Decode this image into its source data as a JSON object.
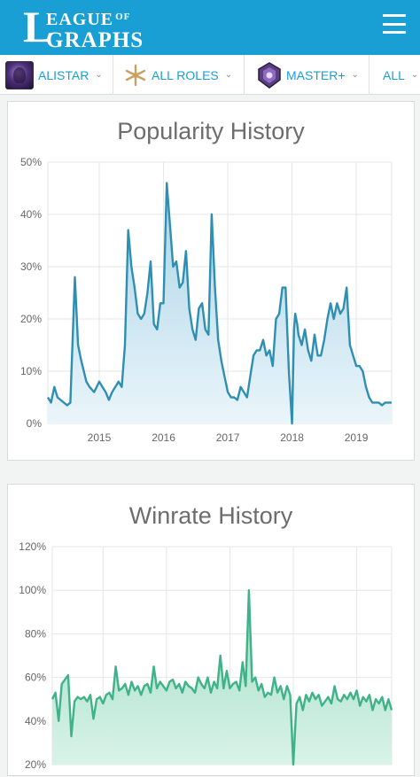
{
  "header": {
    "logo_big_letter": "L",
    "logo_line1": "EAGUE",
    "logo_of": "OF",
    "logo_line2": "GRAPHS",
    "menu_icon": "hamburger-menu-icon",
    "background_color": "#1a9fd4"
  },
  "filters": {
    "champion": {
      "label": "ALISTAR",
      "icon": "champion-portrait-icon"
    },
    "role": {
      "label": "ALL ROLES",
      "icon": "all-roles-icon"
    },
    "rank": {
      "label": "MASTER+",
      "icon": "master-rank-icon"
    },
    "region": {
      "label": "ALL"
    }
  },
  "popularity": {
    "title": "Popularity History",
    "color": "#2e8fb3",
    "fill_top": "#a9d3e6",
    "fill_bottom": "#eaf5fa",
    "chart_data": {
      "type": "area",
      "title": "Popularity History",
      "xlabel": "",
      "ylabel": "",
      "ylim": [
        0,
        50
      ],
      "xlim": [
        2014.2,
        2019.55
      ],
      "y_ticks": [
        "0%",
        "10%",
        "20%",
        "30%",
        "40%",
        "50%"
      ],
      "x_ticks": [
        "2015",
        "2016",
        "2017",
        "2018",
        "2019"
      ],
      "grid": true,
      "x": [
        2014.2,
        2014.25,
        2014.3,
        2014.35,
        2014.45,
        2014.5,
        2014.55,
        2014.62,
        2014.67,
        2014.72,
        2014.8,
        2014.85,
        2014.92,
        2015.0,
        2015.05,
        2015.1,
        2015.15,
        2015.2,
        2015.25,
        2015.3,
        2015.35,
        2015.4,
        2015.45,
        2015.5,
        2015.55,
        2015.6,
        2015.65,
        2015.7,
        2015.75,
        2015.8,
        2015.85,
        2015.9,
        2015.95,
        2016.0,
        2016.05,
        2016.1,
        2016.15,
        2016.2,
        2016.25,
        2016.3,
        2016.35,
        2016.4,
        2016.45,
        2016.5,
        2016.55,
        2016.6,
        2016.65,
        2016.7,
        2016.75,
        2016.8,
        2016.85,
        2016.9,
        2016.95,
        2017.0,
        2017.05,
        2017.1,
        2017.15,
        2017.2,
        2017.25,
        2017.3,
        2017.35,
        2017.4,
        2017.45,
        2017.5,
        2017.55,
        2017.6,
        2017.65,
        2017.7,
        2017.75,
        2017.8,
        2017.85,
        2017.9,
        2017.95,
        2018.0,
        2018.03,
        2018.05,
        2018.08,
        2018.1,
        2018.15,
        2018.2,
        2018.25,
        2018.3,
        2018.35,
        2018.4,
        2018.45,
        2018.5,
        2018.55,
        2018.6,
        2018.65,
        2018.7,
        2018.75,
        2018.8,
        2018.85,
        2018.9,
        2018.95,
        2019.0,
        2019.05,
        2019.1,
        2019.15,
        2019.2,
        2019.25,
        2019.3,
        2019.35,
        2019.4,
        2019.45,
        2019.5,
        2019.55
      ],
      "values": [
        5,
        4,
        7,
        5,
        4,
        3.5,
        4,
        28,
        15,
        12,
        8,
        7,
        6,
        8,
        7,
        6,
        4.5,
        6,
        7,
        8,
        7,
        15,
        37,
        30,
        26,
        21,
        20,
        21,
        25,
        31,
        19,
        18,
        23,
        23,
        46,
        38,
        30,
        31,
        26,
        27,
        33,
        22,
        18,
        16,
        22,
        23,
        18,
        17,
        40,
        26,
        16,
        12,
        9,
        6,
        5,
        5,
        4.5,
        7,
        6,
        5,
        9,
        13,
        14,
        14,
        16,
        13,
        14,
        11,
        20,
        21,
        26,
        26,
        10,
        0,
        18,
        21,
        19,
        17,
        15,
        18,
        14,
        12,
        17,
        13,
        13,
        16,
        20,
        23,
        20,
        23,
        21,
        22,
        26,
        15,
        13,
        11,
        11,
        10,
        7,
        5,
        4,
        4,
        4,
        3.5,
        4,
        4,
        4
      ]
    }
  },
  "winrate": {
    "title": "Winrate History",
    "color": "#3fb28a",
    "fill_top": "#9fdcc3",
    "fill_bottom": "#d9f3e8",
    "chart_data": {
      "type": "area",
      "title": "Winrate History",
      "xlabel": "",
      "ylabel": "",
      "ylim": [
        20,
        120
      ],
      "xlim": [
        2014.2,
        2019.55
      ],
      "y_ticks": [
        "20%",
        "40%",
        "60%",
        "80%",
        "100%",
        "120%"
      ],
      "grid": true,
      "x": [
        2014.2,
        2014.25,
        2014.3,
        2014.35,
        2014.4,
        2014.45,
        2014.5,
        2014.55,
        2014.6,
        2014.65,
        2014.7,
        2014.75,
        2014.8,
        2014.85,
        2014.9,
        2014.95,
        2015.0,
        2015.05,
        2015.1,
        2015.15,
        2015.2,
        2015.25,
        2015.3,
        2015.35,
        2015.4,
        2015.45,
        2015.5,
        2015.55,
        2015.6,
        2015.65,
        2015.7,
        2015.75,
        2015.8,
        2015.85,
        2015.9,
        2015.95,
        2016.0,
        2016.05,
        2016.1,
        2016.15,
        2016.2,
        2016.25,
        2016.3,
        2016.35,
        2016.4,
        2016.45,
        2016.5,
        2016.55,
        2016.6,
        2016.65,
        2016.7,
        2016.75,
        2016.8,
        2016.85,
        2016.9,
        2016.95,
        2017.0,
        2017.05,
        2017.1,
        2017.15,
        2017.2,
        2017.25,
        2017.3,
        2017.35,
        2017.4,
        2017.45,
        2017.5,
        2017.55,
        2017.6,
        2017.65,
        2017.7,
        2017.75,
        2017.8,
        2017.85,
        2017.9,
        2017.95,
        2018.0,
        2018.05,
        2018.1,
        2018.15,
        2018.2,
        2018.25,
        2018.3,
        2018.35,
        2018.4,
        2018.45,
        2018.5,
        2018.55,
        2018.6,
        2018.65,
        2018.7,
        2018.75,
        2018.8,
        2018.85,
        2018.9,
        2018.95,
        2019.0,
        2019.05,
        2019.1,
        2019.15,
        2019.2,
        2019.25,
        2019.3,
        2019.35,
        2019.4,
        2019.45,
        2019.5,
        2019.55
      ],
      "values": [
        50,
        53,
        40,
        57,
        59,
        61,
        33,
        49,
        51,
        50,
        51,
        49,
        52,
        41,
        50,
        51,
        48,
        52,
        53,
        50,
        65,
        54,
        55,
        57,
        52,
        58,
        54,
        56,
        52,
        56,
        57,
        53,
        65,
        55,
        58,
        56,
        54,
        58,
        59,
        55,
        57,
        53,
        58,
        56,
        55,
        53,
        60,
        57,
        55,
        60,
        53,
        58,
        55,
        70,
        55,
        63,
        55,
        57,
        58,
        54,
        67,
        56,
        100,
        58,
        60,
        54,
        57,
        51,
        53,
        52,
        60,
        53,
        56,
        50,
        56,
        52,
        20,
        48,
        51,
        45,
        52,
        49,
        53,
        50,
        52,
        47,
        49,
        51,
        48,
        56,
        50,
        49,
        52,
        50,
        53,
        50,
        54,
        47,
        51,
        49,
        52,
        45,
        50,
        48,
        51,
        45,
        50,
        45
      ]
    }
  }
}
